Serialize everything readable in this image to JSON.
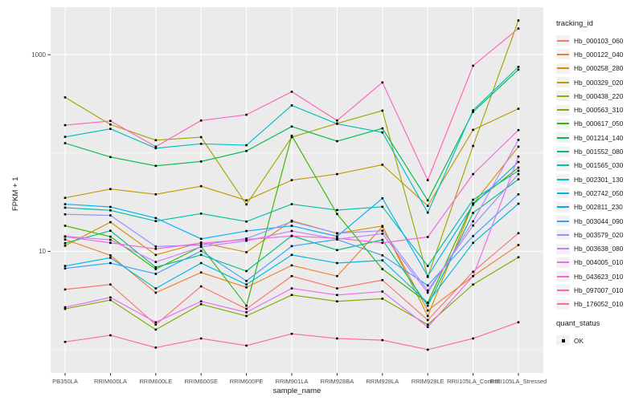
{
  "chart_data": {
    "type": "line",
    "title": "",
    "xlabel": "sample_name",
    "ylabel": "FPKM + 1",
    "y_scale": "log10",
    "ylim": [
      0.58,
      3040
    ],
    "grid": true,
    "legend_position": "right",
    "legend_title": "tracking_id",
    "point_marker": "black-square",
    "y_ticks": [
      {
        "label": "10",
        "value": 10
      },
      {
        "label": "1000",
        "value": 1000
      }
    ],
    "y_minor_grid": [
      1,
      100
    ],
    "categories": [
      "PB350LA",
      "RRIM600LA",
      "RRIM600LE",
      "RRIM600SE",
      "RRIM600PE",
      "RRIM901LA",
      "RRIM928BA",
      "RRIM928LA",
      "RRIM928LE",
      "RRII105LA_Control",
      "RRII105LA_Stressed"
    ],
    "series": [
      {
        "name": "Hb_000103_060",
        "color": "#F8766D",
        "values": [
          4.1,
          4.6,
          1.8,
          4.4,
          2.6,
          5.6,
          4.2,
          5.1,
          2.0,
          6.2,
          15.3
        ]
      },
      {
        "name": "Hb_000122_040",
        "color": "#EA8331",
        "values": [
          13.2,
          9.1,
          3.8,
          6.1,
          4.3,
          7.2,
          5.6,
          17.8,
          2.5,
          5.6,
          11.6
        ]
      },
      {
        "name": "Hb_000258_280",
        "color": "#D89000",
        "values": [
          11.4,
          19.8,
          9.2,
          12.3,
          9.8,
          20.5,
          15.2,
          18.1,
          2.2,
          30.4,
          116
        ]
      },
      {
        "name": "Hb_000329_020",
        "color": "#C09B00",
        "values": [
          35,
          43,
          38,
          46,
          33,
          53,
          61,
          76,
          29,
          172,
          282
        ]
      },
      {
        "name": "Hb_000438_220",
        "color": "#A3A500",
        "values": [
          368,
          195,
          135,
          145,
          30,
          145,
          200,
          270,
          5.5,
          118,
          2230
        ]
      },
      {
        "name": "Hb_000563_310",
        "color": "#7CAE00",
        "values": [
          2.6,
          3.2,
          1.6,
          2.9,
          2.2,
          3.6,
          3.1,
          3.3,
          1.8,
          4.6,
          8.7
        ]
      },
      {
        "name": "Hb_000617_050",
        "color": "#39B600",
        "values": [
          18.2,
          14.1,
          6.6,
          11.2,
          2.8,
          150,
          24,
          6.6,
          3.0,
          30.8,
          71
        ]
      },
      {
        "name": "Hb_001214_140",
        "color": "#00BB4E",
        "values": [
          126,
          91,
          74,
          82,
          105,
          186,
          132,
          178,
          33,
          262,
          705
        ]
      },
      {
        "name": "Hb_001552_080",
        "color": "#00BF7D",
        "values": [
          12.1,
          16.2,
          6.9,
          9.2,
          6.3,
          14.4,
          10.3,
          13.1,
          2.8,
          24.6,
          54
        ]
      },
      {
        "name": "Hb_001565_030",
        "color": "#00C1A3",
        "values": [
          27.8,
          26.1,
          20.3,
          24.2,
          20.1,
          30.2,
          26.3,
          28.4,
          7.1,
          33.5,
          66
        ]
      },
      {
        "name": "Hb_002301_130",
        "color": "#00BFC4",
        "values": [
          146,
          176,
          112,
          124,
          120,
          305,
          198,
          162,
          24.8,
          272,
          752
        ]
      },
      {
        "name": "Hb_002742_050",
        "color": "#00BAE0",
        "values": [
          7.1,
          8.6,
          4.2,
          7.6,
          4.6,
          9.2,
          7.6,
          8.1,
          3.0,
          12.2,
          30.5
        ]
      },
      {
        "name": "Hb_002811_230",
        "color": "#00B0F6",
        "values": [
          30.2,
          28.3,
          21.8,
          13.4,
          16.1,
          18.2,
          14.2,
          34.6,
          5.6,
          29.8,
          81
        ]
      },
      {
        "name": "Hb_003044_090",
        "color": "#35A2FF",
        "values": [
          6.7,
          7.6,
          5.9,
          10.1,
          5.0,
          11.3,
          13.2,
          9.1,
          4.5,
          14.3,
          38
        ]
      },
      {
        "name": "Hb_003579_020",
        "color": "#9590FF",
        "values": [
          23.8,
          23.2,
          11.2,
          11.6,
          13.5,
          20.1,
          15.3,
          16.2,
          4.0,
          18.3,
          61
        ]
      },
      {
        "name": "Hb_003638_080",
        "color": "#C77CFF",
        "values": [
          14.2,
          13.1,
          7.8,
          11.1,
          12.8,
          16.1,
          13.3,
          15.1,
          3.8,
          20.2,
          136
        ]
      },
      {
        "name": "Hb_004005_010",
        "color": "#E76BF3",
        "values": [
          2.7,
          3.4,
          1.9,
          3.1,
          2.4,
          4.2,
          3.6,
          3.9,
          1.7,
          5.6,
          92
        ]
      },
      {
        "name": "Hb_043623_010",
        "color": "#FA62DB",
        "values": [
          14.1,
          12.2,
          10.6,
          12.1,
          13.2,
          14.3,
          13.6,
          12.2,
          14.0,
          61,
          171
        ]
      },
      {
        "name": "Hb_097007_010",
        "color": "#FF62BC",
        "values": [
          192,
          212,
          116,
          214,
          245,
          420,
          214,
          522,
          53,
          772,
          1845
        ]
      },
      {
        "name": "Hb_176052_010",
        "color": "#FF6A98",
        "values": [
          1.2,
          1.4,
          1.05,
          1.3,
          1.1,
          1.45,
          1.3,
          1.25,
          1.0,
          1.3,
          1.9
        ]
      }
    ]
  },
  "quant_legend": {
    "title": "quant_status",
    "items": [
      "OK"
    ]
  },
  "colors": {
    "panel_bg": "#EBEBEB",
    "grid": "#FFFFFF",
    "point": "#000000",
    "tick_text": "#4D4D4D",
    "tick_mark": "#333333",
    "title_text": "#1A1A1A",
    "page_bg": "#FFFFFF",
    "legend_key_bg": "#F2F2F2"
  }
}
